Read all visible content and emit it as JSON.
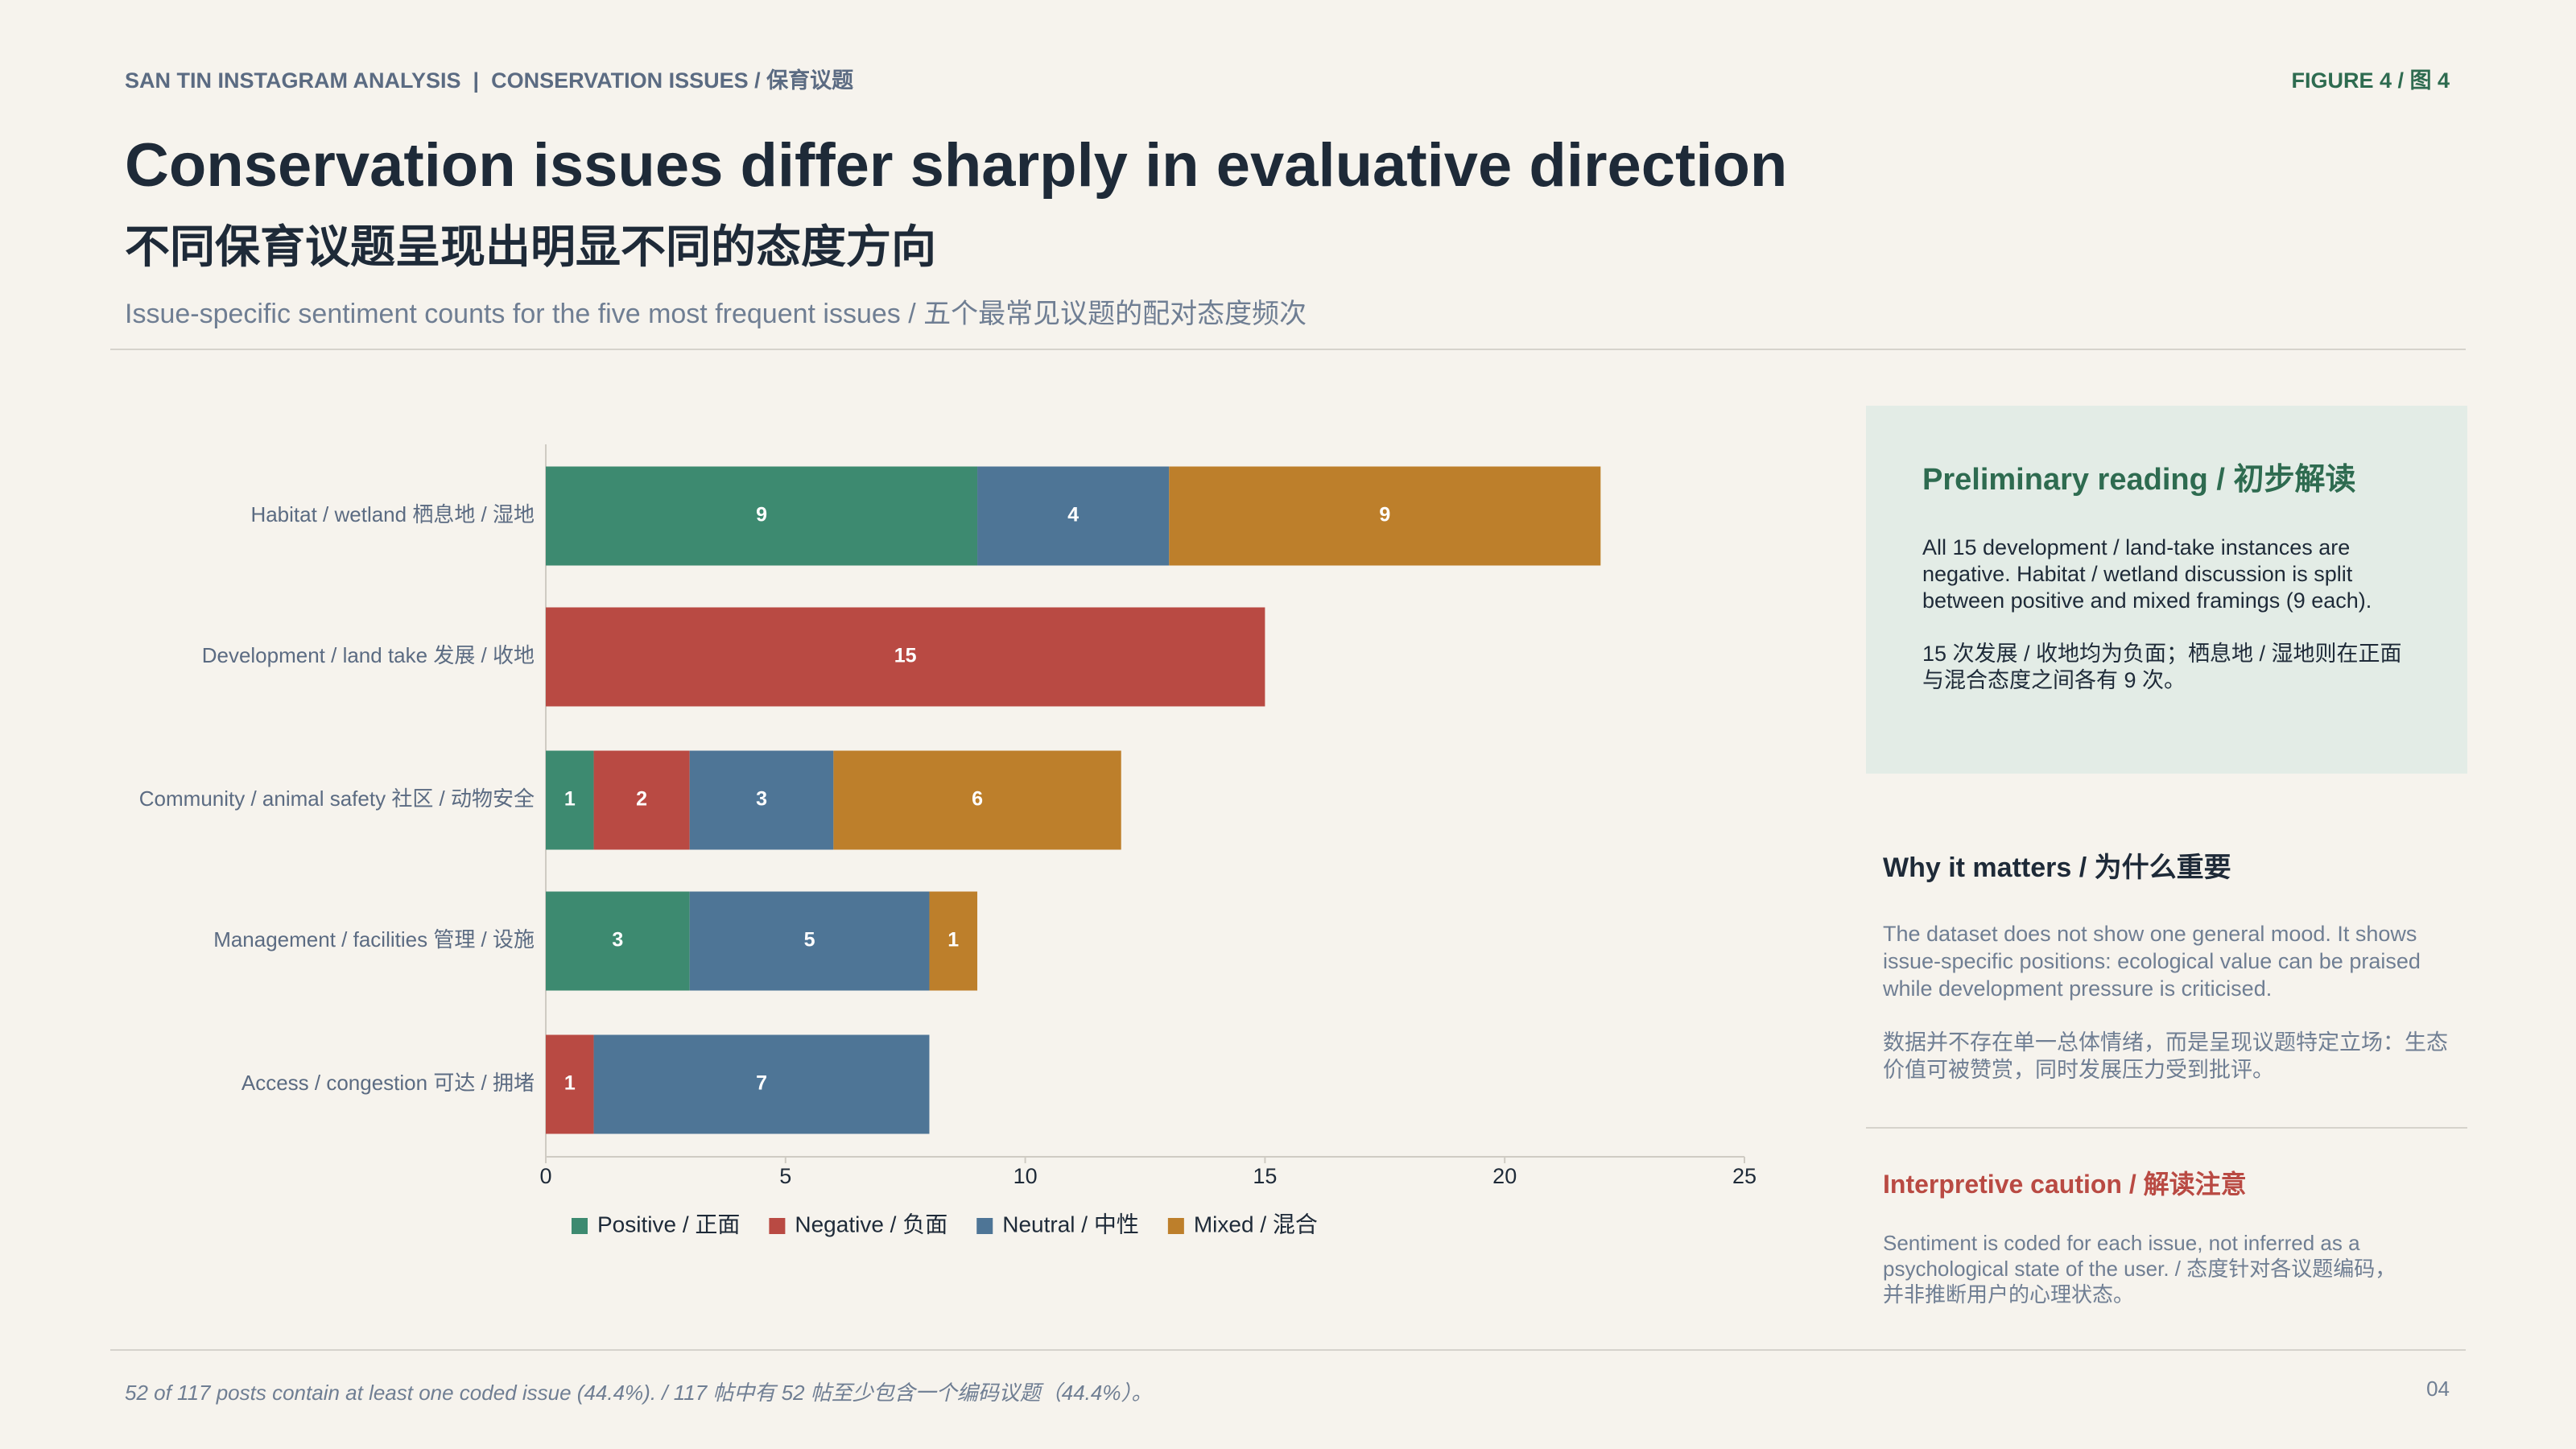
{
  "header": {
    "kicker": "SAN TIN INSTAGRAM ANALYSIS  |  CONSERVATION ISSUES / 保育议题",
    "figure": "FIGURE 4 / 图 4",
    "title": "Conservation issues differ sharply in evaluative direction",
    "title_zh": "不同保育议题呈现出明显不同的态度方向",
    "subtitle": "Issue-specific sentiment counts for the five most frequent issues / 五个最常见议题的配对态度频次"
  },
  "chart_data": {
    "type": "stacked-barh",
    "categories": [
      "Habitat / wetland 栖息地 / 湿地",
      "Development / land take 发展 / 收地",
      "Community / animal safety 社区 / 动物安全",
      "Management / facilities 管理 / 设施",
      "Access / congestion 可达 / 拥堵"
    ],
    "series": [
      {
        "name": "Positive / 正面",
        "color": "#3d8a70",
        "values": [
          9,
          0,
          1,
          3,
          0
        ]
      },
      {
        "name": "Negative / 负面",
        "color": "#b94a43",
        "values": [
          0,
          15,
          2,
          0,
          1
        ]
      },
      {
        "name": "Neutral / 中性",
        "color": "#4e7596",
        "values": [
          4,
          0,
          3,
          5,
          7
        ]
      },
      {
        "name": "Mixed / 混合",
        "color": "#bd7f2b",
        "values": [
          9,
          0,
          6,
          1,
          0
        ]
      }
    ],
    "xlim": [
      0,
      25
    ],
    "xticks": [
      0,
      5,
      10,
      15,
      20,
      25
    ],
    "grid": false,
    "legend": "bottom"
  },
  "sidebar": {
    "preliminary": {
      "heading": "Preliminary reading / 初步解读",
      "paragraphs": [
        "All 15 development / land-take instances are negative. Habitat / wetland discussion is split between positive and mixed framings (9 each).",
        "15 次发展 / 收地均为负面；栖息地 / 湿地则在正面与混合态度之间各有 9 次。"
      ]
    },
    "why": {
      "heading": "Why it matters / 为什么重要",
      "paragraphs": [
        "The dataset does not show one general mood. It shows issue-specific positions: ecological value can be praised while development pressure is criticised.",
        "数据并不存在单一总体情绪，而是呈现议题特定立场：生态价值可被赞赏，同时发展压力受到批评。"
      ]
    },
    "caution": {
      "heading": "Interpretive caution / 解读注意",
      "text": "Sentiment is coded for each issue, not inferred as a psychological state of the user. / 态度针对各议题编码，并非推断用户的心理状态。"
    }
  },
  "footer": {
    "note": "52 of 117 posts contain at least one coded issue (44.4%). / 117 帖中有 52 帖至少包含一个编码议题（44.4%）。",
    "page": "04"
  }
}
